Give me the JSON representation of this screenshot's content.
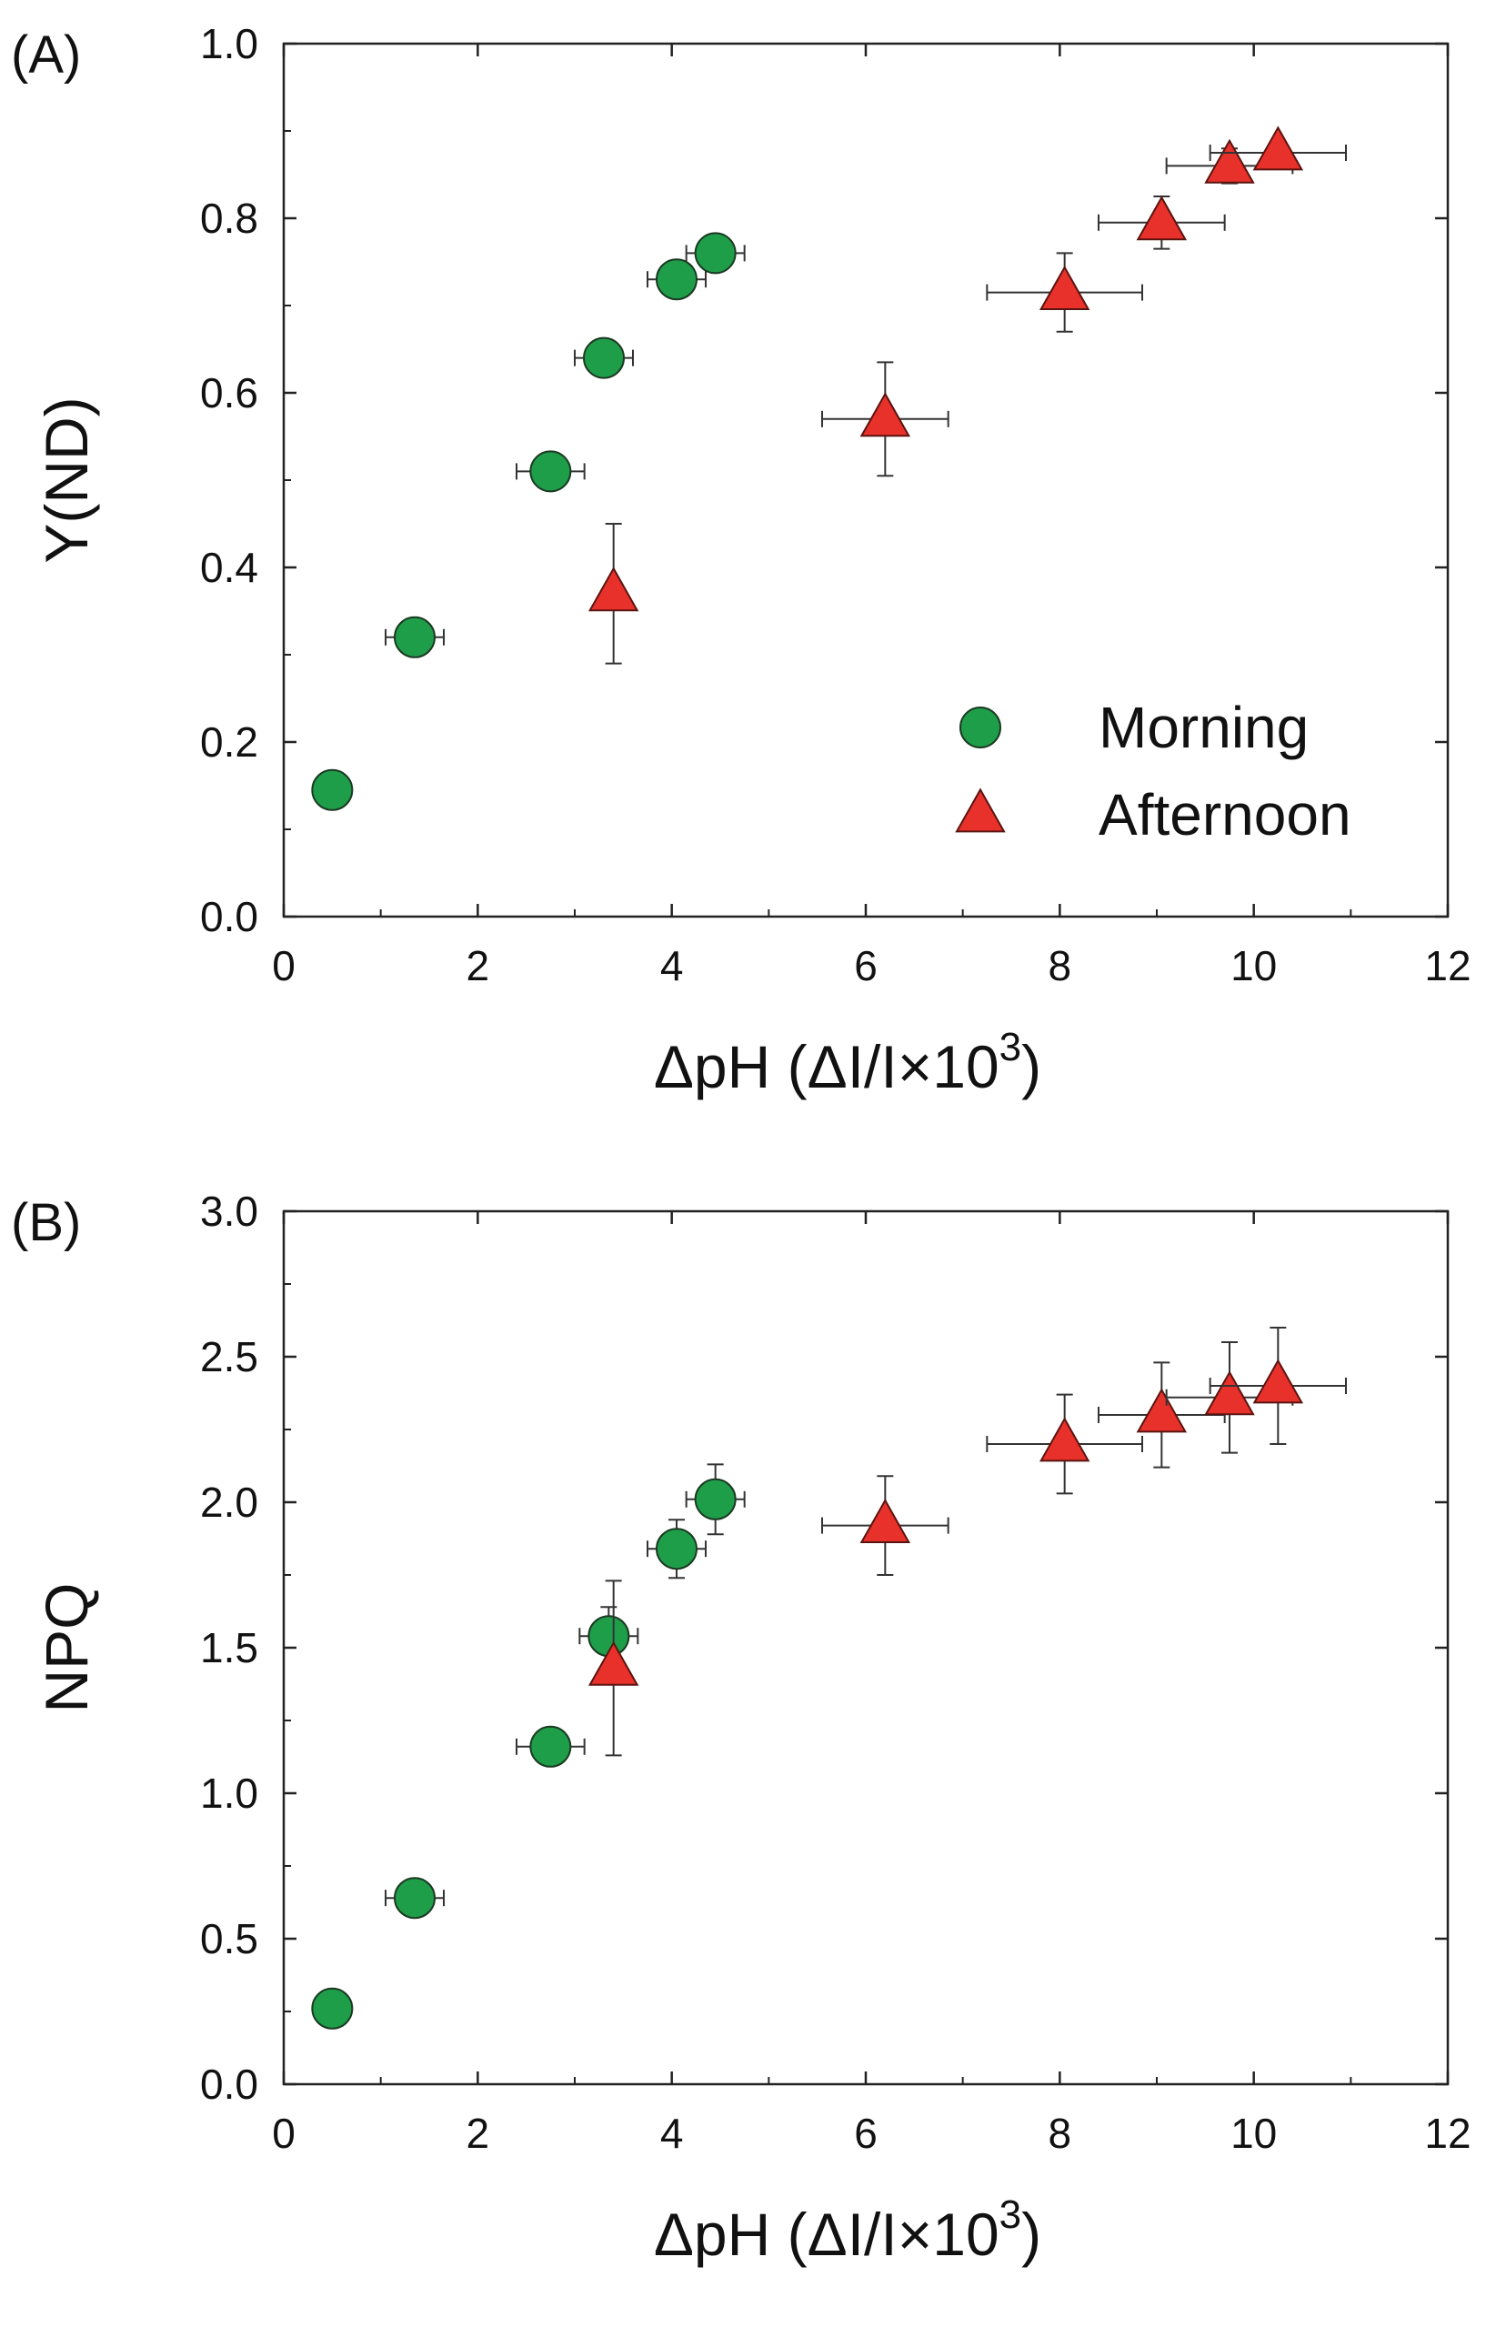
{
  "chart_data": [
    {
      "type": "scatter",
      "panel_label": "(A)",
      "xlabel": "ΔpH (ΔI/I×10",
      "xlabel_sup": "3",
      "xlabel_close": ")",
      "ylabel": "Y(ND)",
      "xlim": [
        0,
        12
      ],
      "ylim": [
        0.0,
        1.0
      ],
      "xticks": [
        "0",
        "2",
        "4",
        "6",
        "8",
        "10",
        "12"
      ],
      "yticks": [
        "0.0",
        "0.2",
        "0.4",
        "0.6",
        "0.8",
        "1.0"
      ],
      "grid": false,
      "legend_position": "bottom-right",
      "series": [
        {
          "name": "Morning",
          "marker": "circle",
          "color": "#1f9e4a",
          "x": [
            0.5,
            1.35,
            2.75,
            3.3,
            4.05,
            4.45
          ],
          "y": [
            0.145,
            0.32,
            0.51,
            0.64,
            0.73,
            0.76
          ],
          "xerr": [
            0.0,
            0.3,
            0.35,
            0.3,
            0.3,
            0.3
          ],
          "yerr": [
            0.0,
            0.0,
            0.0,
            0.0,
            0.0,
            0.0
          ]
        },
        {
          "name": "Afternoon",
          "marker": "triangle",
          "color": "#e8312a",
          "x": [
            3.4,
            6.2,
            8.05,
            9.05,
            9.75,
            10.25
          ],
          "y": [
            0.37,
            0.57,
            0.715,
            0.795,
            0.86,
            0.875
          ],
          "xerr": [
            0.0,
            0.65,
            0.8,
            0.65,
            0.65,
            0.7
          ],
          "yerr": [
            0.08,
            0.065,
            0.045,
            0.03,
            0.02,
            0.0
          ]
        }
      ]
    },
    {
      "type": "scatter",
      "panel_label": "(B)",
      "xlabel": "ΔpH (ΔI/I×10",
      "xlabel_sup": "3",
      "xlabel_close": ")",
      "ylabel": "NPQ",
      "xlim": [
        0,
        12
      ],
      "ylim": [
        0.0,
        3.0
      ],
      "xticks": [
        "0",
        "2",
        "4",
        "6",
        "8",
        "10",
        "12"
      ],
      "yticks": [
        "0.0",
        "0.5",
        "1.0",
        "1.5",
        "2.0",
        "2.5",
        "3.0"
      ],
      "grid": false,
      "series": [
        {
          "name": "Morning",
          "marker": "circle",
          "color": "#1f9e4a",
          "x": [
            0.5,
            1.35,
            2.75,
            3.35,
            4.05,
            4.45
          ],
          "y": [
            0.26,
            0.64,
            1.16,
            1.54,
            1.84,
            2.01
          ],
          "xerr": [
            0.0,
            0.3,
            0.35,
            0.3,
            0.3,
            0.3
          ],
          "yerr": [
            0.0,
            0.0,
            0.0,
            0.1,
            0.1,
            0.12
          ]
        },
        {
          "name": "Afternoon",
          "marker": "triangle",
          "color": "#e8312a",
          "x": [
            3.4,
            6.2,
            8.05,
            9.05,
            9.75,
            10.25
          ],
          "y": [
            1.43,
            1.92,
            2.2,
            2.3,
            2.36,
            2.4
          ],
          "xerr": [
            0.0,
            0.65,
            0.8,
            0.65,
            0.65,
            0.7
          ],
          "yerr": [
            0.3,
            0.17,
            0.17,
            0.18,
            0.19,
            0.2
          ]
        }
      ]
    }
  ]
}
